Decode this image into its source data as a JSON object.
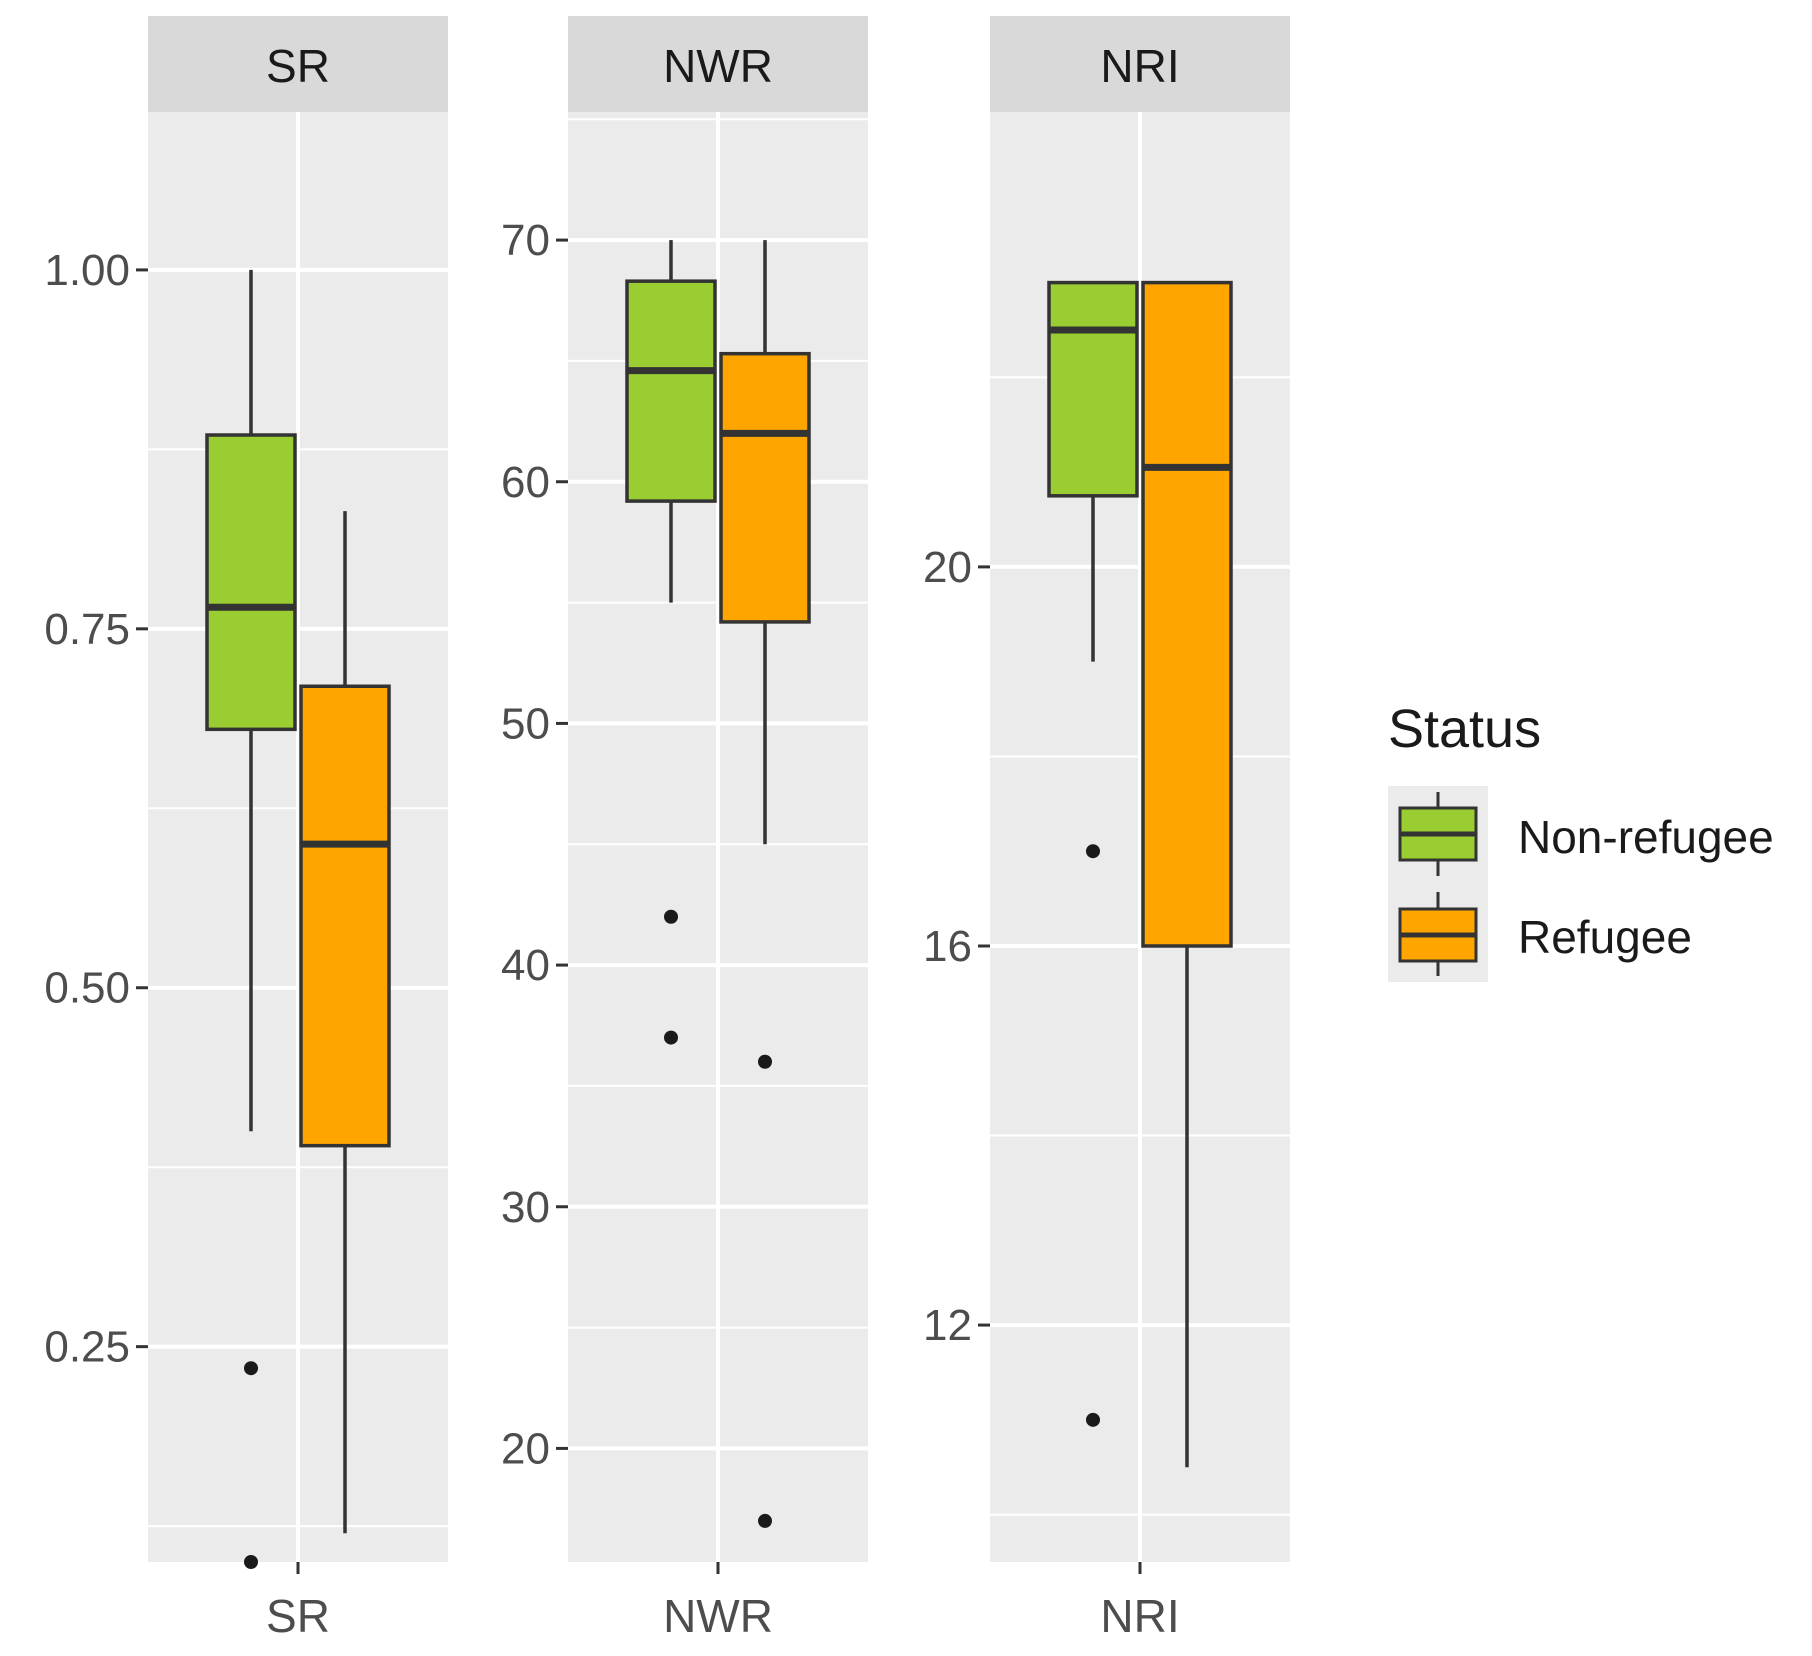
{
  "chart_data": {
    "type": "boxplot",
    "facets": [
      "SR",
      "NWR",
      "NRI"
    ],
    "legend": {
      "title": "Status",
      "entries": [
        {
          "name": "Non-refugee",
          "color": "#9ACD32"
        },
        {
          "name": "Refugee",
          "color": "#FFA500"
        }
      ],
      "placement": "right"
    },
    "panels": [
      {
        "name": "SR",
        "strip_label": "SR",
        "x_label": "SR",
        "ylim": [
          0.1,
          1.11
        ],
        "y_ticks": [
          0.25,
          0.5,
          0.75,
          1.0
        ],
        "y_tick_labels": [
          "0.25",
          "0.50",
          "0.75",
          "1.00"
        ],
        "groups": [
          {
            "status": "Non-refugee",
            "min": 0.4,
            "q1": 0.68,
            "median": 0.765,
            "q3": 0.885,
            "max": 1.0,
            "outliers": [
              0.235,
              0.1
            ]
          },
          {
            "status": "Refugee",
            "min": 0.12,
            "q1": 0.39,
            "median": 0.6,
            "q3": 0.71,
            "max": 0.832,
            "outliers": []
          }
        ]
      },
      {
        "name": "NWR",
        "strip_label": "NWR",
        "x_label": "NWR",
        "ylim": [
          15.3,
          75.3
        ],
        "y_ticks": [
          20,
          30,
          40,
          50,
          60,
          70
        ],
        "y_tick_labels": [
          "20",
          "30",
          "40",
          "50",
          "60",
          "70"
        ],
        "groups": [
          {
            "status": "Non-refugee",
            "min": 55,
            "q1": 59.2,
            "median": 64.6,
            "q3": 68.3,
            "max": 70,
            "outliers": [
              42,
              37
            ]
          },
          {
            "status": "Refugee",
            "min": 45,
            "q1": 54.2,
            "median": 62,
            "q3": 65.3,
            "max": 70,
            "outliers": [
              36,
              17
            ]
          }
        ]
      },
      {
        "name": "NRI",
        "strip_label": "NRI",
        "x_label": "NRI",
        "ylim": [
          9.5,
          24.8
        ],
        "y_ticks": [
          12,
          16,
          20
        ],
        "y_tick_labels": [
          "12",
          "16",
          "20"
        ],
        "groups": [
          {
            "status": "Non-refugee",
            "min": 19,
            "q1": 20.75,
            "median": 22.5,
            "q3": 23,
            "max": 23,
            "outliers": [
              17,
              11
            ]
          },
          {
            "status": "Refugee",
            "min": 10.5,
            "q1": 16,
            "median": 21.05,
            "q3": 23,
            "max": 23,
            "outliers": []
          }
        ]
      }
    ]
  }
}
